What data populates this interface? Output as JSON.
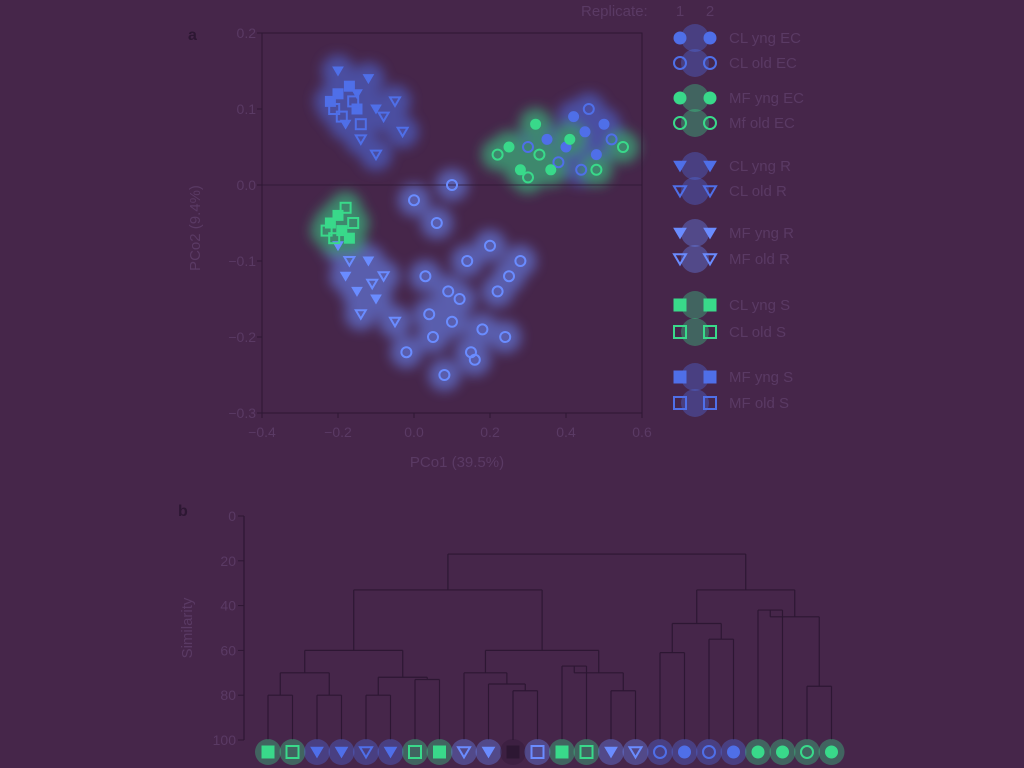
{
  "colors": {
    "background": "#46264a",
    "ink": "#2d1733",
    "text": "#5a3a64",
    "marker_green": "#39d98a",
    "marker_blue": "#4f6fe8",
    "marker_teal": "#3fb7c7",
    "marker_light": "#6a8cff"
  },
  "chart_data": [
    {
      "type": "scatter",
      "panel_label": "a",
      "xlabel": "PCo1 (39.5%)",
      "ylabel": "PCo2 (9.4%)",
      "xlim": [
        -0.4,
        0.6
      ],
      "ylim": [
        -0.3,
        0.2
      ],
      "xticks": [
        "−0.4",
        "−0.2",
        "0.0",
        "0.2",
        "0.4",
        "0.6"
      ],
      "yticks": [
        "−0.3",
        "−0.2",
        "−0.1",
        "0.0",
        "0.1",
        "0.2"
      ],
      "legend_header": "Replicate:",
      "replicates": [
        "1",
        "2"
      ],
      "legend_placement": "right",
      "series": [
        {
          "name": "CL yng EC",
          "marker": "circle-filled",
          "color": "#4f6fe8",
          "points": [
            [
              0.45,
              0.07
            ],
            [
              0.4,
              0.05
            ],
            [
              0.48,
              0.04
            ],
            [
              0.35,
              0.06
            ],
            [
              0.5,
              0.08
            ],
            [
              0.42,
              0.09
            ]
          ]
        },
        {
          "name": "CL old EC",
          "marker": "circle-open",
          "color": "#4f6fe8",
          "points": [
            [
              0.38,
              0.03
            ],
            [
              0.44,
              0.02
            ],
            [
              0.52,
              0.06
            ],
            [
              0.3,
              0.05
            ],
            [
              0.46,
              0.1
            ]
          ]
        },
        {
          "name": "MF yng EC",
          "marker": "circle-filled",
          "color": "#39d98a",
          "points": [
            [
              0.25,
              0.05
            ],
            [
              0.32,
              0.08
            ],
            [
              0.36,
              0.02
            ],
            [
              0.28,
              0.02
            ],
            [
              0.41,
              0.06
            ]
          ]
        },
        {
          "name": "Mf old EC",
          "marker": "circle-open",
          "color": "#39d98a",
          "points": [
            [
              0.22,
              0.04
            ],
            [
              0.3,
              0.01
            ],
            [
              0.33,
              0.04
            ],
            [
              0.55,
              0.05
            ],
            [
              0.48,
              0.02
            ]
          ]
        },
        {
          "name": "CL yng R",
          "marker": "triangle-filled",
          "color": "#4f6fe8",
          "points": [
            [
              -0.2,
              0.15
            ],
            [
              -0.15,
              0.12
            ],
            [
              -0.1,
              0.1
            ],
            [
              -0.18,
              0.08
            ],
            [
              -0.12,
              0.14
            ]
          ]
        },
        {
          "name": "CL old R",
          "marker": "triangle-open",
          "color": "#4f6fe8",
          "points": [
            [
              -0.08,
              0.09
            ],
            [
              -0.05,
              0.11
            ],
            [
              -0.14,
              0.06
            ],
            [
              -0.03,
              0.07
            ],
            [
              -0.1,
              0.04
            ]
          ]
        },
        {
          "name": "MF yng R",
          "marker": "triangle-filled",
          "color": "#6a8cff",
          "points": [
            [
              -0.18,
              -0.12
            ],
            [
              -0.15,
              -0.14
            ],
            [
              -0.12,
              -0.1
            ],
            [
              -0.2,
              -0.08
            ],
            [
              -0.1,
              -0.15
            ]
          ]
        },
        {
          "name": "MF old R",
          "marker": "triangle-open",
          "color": "#6a8cff",
          "points": [
            [
              -0.14,
              -0.17
            ],
            [
              -0.08,
              -0.12
            ],
            [
              -0.17,
              -0.1
            ],
            [
              -0.05,
              -0.18
            ],
            [
              -0.11,
              -0.13
            ]
          ]
        },
        {
          "name": "CL yng S",
          "marker": "square-filled",
          "color": "#39d98a",
          "points": [
            [
              -0.19,
              -0.06
            ],
            [
              -0.22,
              -0.05
            ],
            [
              -0.17,
              -0.07
            ],
            [
              -0.2,
              -0.04
            ]
          ]
        },
        {
          "name": "CL old S",
          "marker": "square-open",
          "color": "#39d98a",
          "points": [
            [
              -0.21,
              -0.07
            ],
            [
              -0.16,
              -0.05
            ],
            [
              -0.23,
              -0.06
            ],
            [
              -0.18,
              -0.03
            ]
          ]
        },
        {
          "name": "MF yng S",
          "marker": "square-filled",
          "color": "#4f6fe8",
          "points": [
            [
              -0.2,
              0.12
            ],
            [
              -0.17,
              0.13
            ],
            [
              -0.22,
              0.11
            ],
            [
              -0.15,
              0.1
            ]
          ]
        },
        {
          "name": "MF old S",
          "marker": "square-open",
          "color": "#4f6fe8",
          "points": [
            [
              -0.19,
              0.09
            ],
            [
              -0.16,
              0.11
            ],
            [
              -0.21,
              0.1
            ],
            [
              -0.14,
              0.08
            ]
          ]
        },
        {
          "name": "",
          "marker": "circle-open",
          "color": "#6a8cff",
          "points": [
            [
              0.05,
              -0.2
            ],
            [
              0.1,
              -0.18
            ],
            [
              0.15,
              -0.22
            ],
            [
              0.12,
              -0.15
            ],
            [
              0.08,
              -0.25
            ],
            [
              0.18,
              -0.19
            ],
            [
              0.22,
              -0.14
            ],
            [
              0.03,
              -0.12
            ],
            [
              0.14,
              -0.1
            ],
            [
              0.2,
              -0.08
            ],
            [
              0.25,
              -0.12
            ],
            [
              0.06,
              -0.05
            ],
            [
              0.1,
              0.0
            ],
            [
              0.0,
              -0.02
            ],
            [
              0.16,
              -0.23
            ],
            [
              -0.02,
              -0.22
            ],
            [
              0.24,
              -0.2
            ],
            [
              0.09,
              -0.14
            ],
            [
              0.28,
              -0.1
            ],
            [
              0.04,
              -0.17
            ]
          ]
        }
      ]
    },
    {
      "type": "dendrogram",
      "panel_label": "b",
      "ylabel": "Similarity",
      "ylim": [
        0,
        100
      ],
      "yticks": [
        "0",
        "20",
        "40",
        "60",
        "80",
        "100"
      ],
      "leaf_markers": [
        "square-filled",
        "square-open",
        "triangle-filled",
        "triangle-filled",
        "triangle-open",
        "triangle-filled",
        "square-open",
        "square-filled",
        "triangle-open",
        "triangle-filled",
        "square-filled",
        "square-open",
        "square-filled",
        "square-open",
        "triangle-filled",
        "triangle-open",
        "circle-open",
        "circle-filled",
        "circle-open",
        "circle-filled",
        "circle-filled",
        "circle-filled",
        "circle-open",
        "circle-filled"
      ],
      "leaf_colors": [
        "#39d98a",
        "#39d98a",
        "#4f6fe8",
        "#4f6fe8",
        "#4f6fe8",
        "#4f6fe8",
        "#39d98a",
        "#39d98a",
        "#6a8cff",
        "#6a8cff",
        "#2d1733",
        "#6a8cff",
        "#39d98a",
        "#39d98a",
        "#6a8cff",
        "#6a8cff",
        "#4f6fe8",
        "#4f6fe8",
        "#4f6fe8",
        "#4f6fe8",
        "#39d98a",
        "#39d98a",
        "#39d98a",
        "#39d98a"
      ],
      "merges": [
        {
          "left": [
            0,
            1
          ],
          "height": 80
        },
        {
          "left": [
            2,
            3
          ],
          "height": 80
        },
        {
          "left": [
            4,
            5
          ],
          "height": 80
        },
        {
          "left": [
            6,
            7
          ],
          "height": 73
        },
        {
          "left": [
            10,
            11
          ],
          "height": 78
        },
        {
          "left": [
            12,
            13
          ],
          "height": 67
        },
        {
          "left": [
            14,
            15
          ],
          "height": 78
        },
        {
          "left": [
            18,
            19
          ],
          "height": 55
        },
        {
          "left": [
            22,
            23
          ],
          "height": 76
        },
        {
          "level": 70
        },
        {
          "level": 60
        },
        {
          "level": 33
        },
        {
          "level": 17
        }
      ]
    }
  ]
}
